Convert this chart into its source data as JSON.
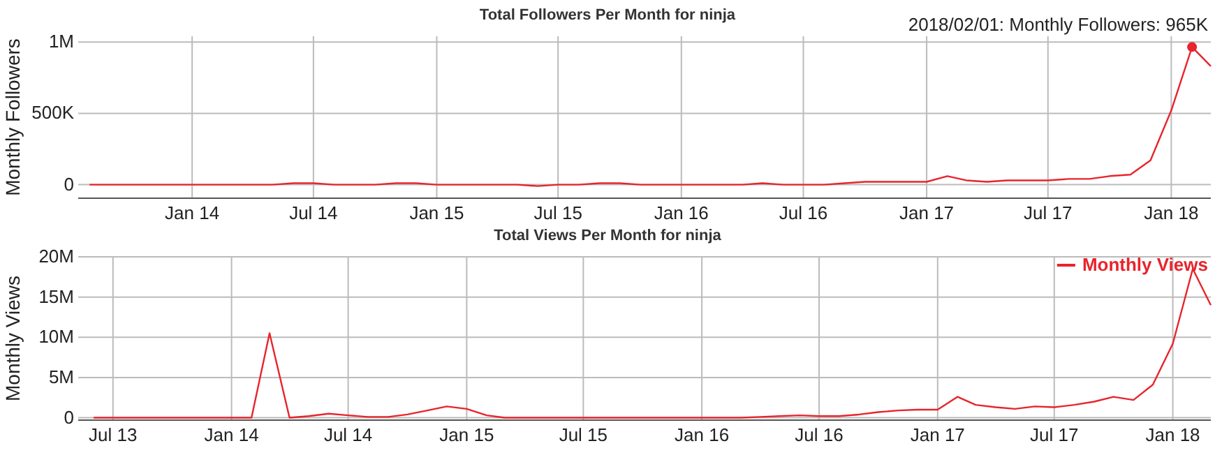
{
  "chart_data": [
    {
      "type": "line",
      "title": "Total Followers Per Month for ninja",
      "ylabel": "Monthly Followers",
      "xlim": [
        "2013-07-15",
        "2018-03-01"
      ],
      "ylim": [
        -95000,
        1040000
      ],
      "xticks": [
        {
          "value": "2014-01-01",
          "label": "Jan 14"
        },
        {
          "value": "2014-07-01",
          "label": "Jul 14"
        },
        {
          "value": "2015-01-01",
          "label": "Jan 15"
        },
        {
          "value": "2015-07-01",
          "label": "Jul 15"
        },
        {
          "value": "2016-01-01",
          "label": "Jan 16"
        },
        {
          "value": "2016-07-01",
          "label": "Jul 16"
        },
        {
          "value": "2017-01-01",
          "label": "Jan 17"
        },
        {
          "value": "2017-07-01",
          "label": "Jul 17"
        },
        {
          "value": "2018-01-01",
          "label": "Jan 18"
        }
      ],
      "yticks": [
        0,
        {
          "value": 500000,
          "label": "500K"
        },
        {
          "value": 1000000,
          "label": "1M"
        }
      ],
      "grid": true,
      "legend": false,
      "x": [
        "2013-08",
        "2013-09",
        "2013-10",
        "2013-11",
        "2013-12",
        "2014-01",
        "2014-02",
        "2014-03",
        "2014-04",
        "2014-05",
        "2014-06",
        "2014-07",
        "2014-08",
        "2014-09",
        "2014-10",
        "2014-11",
        "2014-12",
        "2015-01",
        "2015-02",
        "2015-03",
        "2015-04",
        "2015-05",
        "2015-06",
        "2015-07",
        "2015-08",
        "2015-09",
        "2015-10",
        "2015-11",
        "2015-12",
        "2016-01",
        "2016-02",
        "2016-03",
        "2016-04",
        "2016-05",
        "2016-06",
        "2016-07",
        "2016-08",
        "2016-09",
        "2016-10",
        "2016-11",
        "2016-12",
        "2017-01",
        "2017-02",
        "2017-03",
        "2017-04",
        "2017-05",
        "2017-06",
        "2017-07",
        "2017-08",
        "2017-09",
        "2017-10",
        "2017-11",
        "2017-12",
        "2018-01",
        "2018-02",
        "2018-03"
      ],
      "series": [
        {
          "color": "#e8242c",
          "values": [
            0,
            0,
            0,
            0,
            0,
            0,
            0,
            0,
            0,
            0,
            10000,
            10000,
            0,
            0,
            0,
            10000,
            10000,
            0,
            0,
            0,
            0,
            0,
            -10000,
            0,
            0,
            10000,
            10000,
            0,
            0,
            0,
            0,
            0,
            0,
            10000,
            0,
            0,
            0,
            10000,
            20000,
            20000,
            20000,
            20000,
            60000,
            30000,
            20000,
            30000,
            30000,
            30000,
            40000,
            40000,
            60000,
            70000,
            170000,
            520000,
            965000,
            830000
          ]
        }
      ],
      "annotations": [
        {
          "text": "2018/02/01: Monthly Followers: 965K",
          "x": "2018-02-01",
          "y": 965000
        }
      ]
    },
    {
      "type": "line",
      "title": "Total Views Per Month for ninja",
      "ylabel": "Monthly Views",
      "xlim": [
        "2013-05-08",
        "2018-03-01"
      ],
      "ylim": [
        -300000,
        20000000
      ],
      "xticks": [
        {
          "value": "2013-07-01",
          "label": "Jul 13"
        },
        {
          "value": "2014-01-01",
          "label": "Jan 14"
        },
        {
          "value": "2014-07-01",
          "label": "Jul 14"
        },
        {
          "value": "2015-01-01",
          "label": "Jan 15"
        },
        {
          "value": "2015-07-01",
          "label": "Jul 15"
        },
        {
          "value": "2016-01-01",
          "label": "Jan 16"
        },
        {
          "value": "2016-07-01",
          "label": "Jul 16"
        },
        {
          "value": "2017-01-01",
          "label": "Jan 17"
        },
        {
          "value": "2017-07-01",
          "label": "Jul 17"
        },
        {
          "value": "2018-01-01",
          "label": "Jan 18"
        }
      ],
      "yticks": [
        0,
        {
          "value": 5000000,
          "label": "5M"
        },
        {
          "value": 10000000,
          "label": "10M"
        },
        {
          "value": 15000000,
          "label": "15M"
        },
        {
          "value": 20000000,
          "label": "20M"
        }
      ],
      "grid": true,
      "legend": "top right",
      "x": [
        "2013-06",
        "2013-07",
        "2013-08",
        "2013-09",
        "2013-10",
        "2013-11",
        "2013-12",
        "2014-01",
        "2014-02",
        "2014-03",
        "2014-04",
        "2014-05",
        "2014-06",
        "2014-07",
        "2014-08",
        "2014-09",
        "2014-10",
        "2014-11",
        "2014-12",
        "2015-01",
        "2015-02",
        "2015-03",
        "2015-04",
        "2015-05",
        "2015-06",
        "2015-07",
        "2015-08",
        "2015-09",
        "2015-10",
        "2015-11",
        "2015-12",
        "2016-01",
        "2016-02",
        "2016-03",
        "2016-04",
        "2016-05",
        "2016-06",
        "2016-07",
        "2016-08",
        "2016-09",
        "2016-10",
        "2016-11",
        "2016-12",
        "2017-01",
        "2017-02",
        "2017-03",
        "2017-04",
        "2017-05",
        "2017-06",
        "2017-07",
        "2017-08",
        "2017-09",
        "2017-10",
        "2017-11",
        "2017-12",
        "2018-01",
        "2018-02",
        "2018-03"
      ],
      "series": [
        {
          "name": "Monthly Views",
          "color": "#e8242c",
          "values": [
            0,
            0,
            0,
            0,
            0,
            0,
            0,
            0,
            0,
            10500000,
            0,
            200000,
            500000,
            300000,
            100000,
            100000,
            400000,
            900000,
            1400000,
            1100000,
            300000,
            0,
            0,
            0,
            0,
            0,
            0,
            0,
            0,
            0,
            0,
            0,
            0,
            0,
            100000,
            200000,
            300000,
            200000,
            200000,
            400000,
            700000,
            900000,
            1000000,
            1000000,
            2600000,
            1600000,
            1300000,
            1100000,
            1400000,
            1300000,
            1600000,
            2000000,
            2600000,
            2200000,
            4100000,
            9200000,
            18500000,
            14000000
          ]
        }
      ]
    }
  ]
}
